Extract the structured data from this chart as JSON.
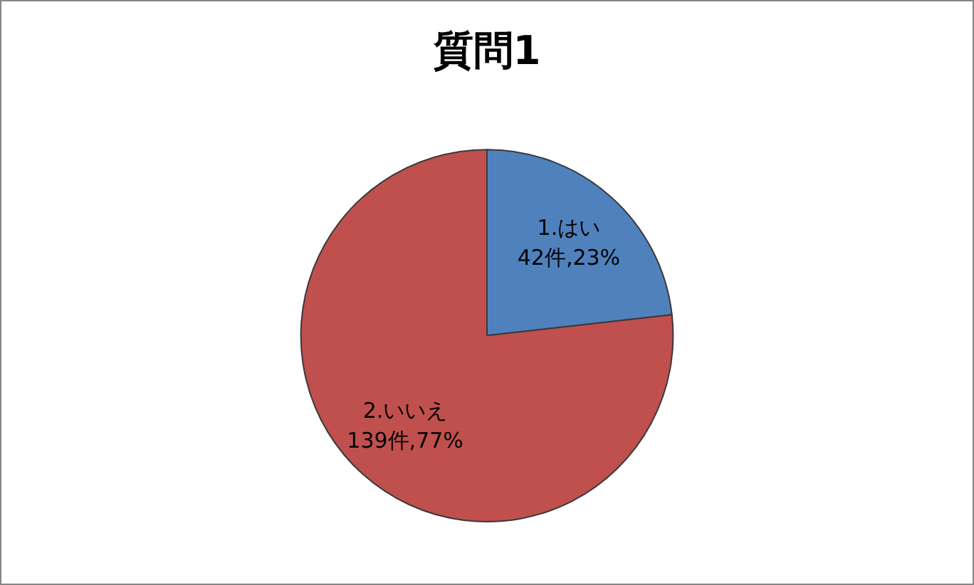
{
  "chart_data": {
    "type": "pie",
    "title": "質問1",
    "categories": [
      "1.はい",
      "2.いいえ"
    ],
    "values": [
      42,
      139
    ],
    "colors": [
      "#4f81bd",
      "#c0504d"
    ],
    "value_labels": [
      "42件,23%",
      "139件,77%"
    ]
  }
}
